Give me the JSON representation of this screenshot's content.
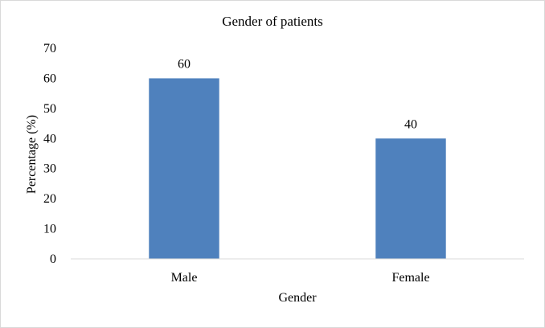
{
  "chart_data": {
    "type": "bar",
    "title": "Gender of patients",
    "xlabel": "Gender",
    "ylabel": "Percentage (%)",
    "categories": [
      "Male",
      "Female"
    ],
    "values": [
      60,
      40
    ],
    "data_labels": [
      "60",
      "40"
    ],
    "ylim": [
      0,
      70
    ],
    "yticks": [
      "0",
      "10",
      "20",
      "30",
      "40",
      "50",
      "60",
      "70"
    ],
    "grid": false,
    "legend": "none",
    "bar_color": "#4f81bd"
  }
}
